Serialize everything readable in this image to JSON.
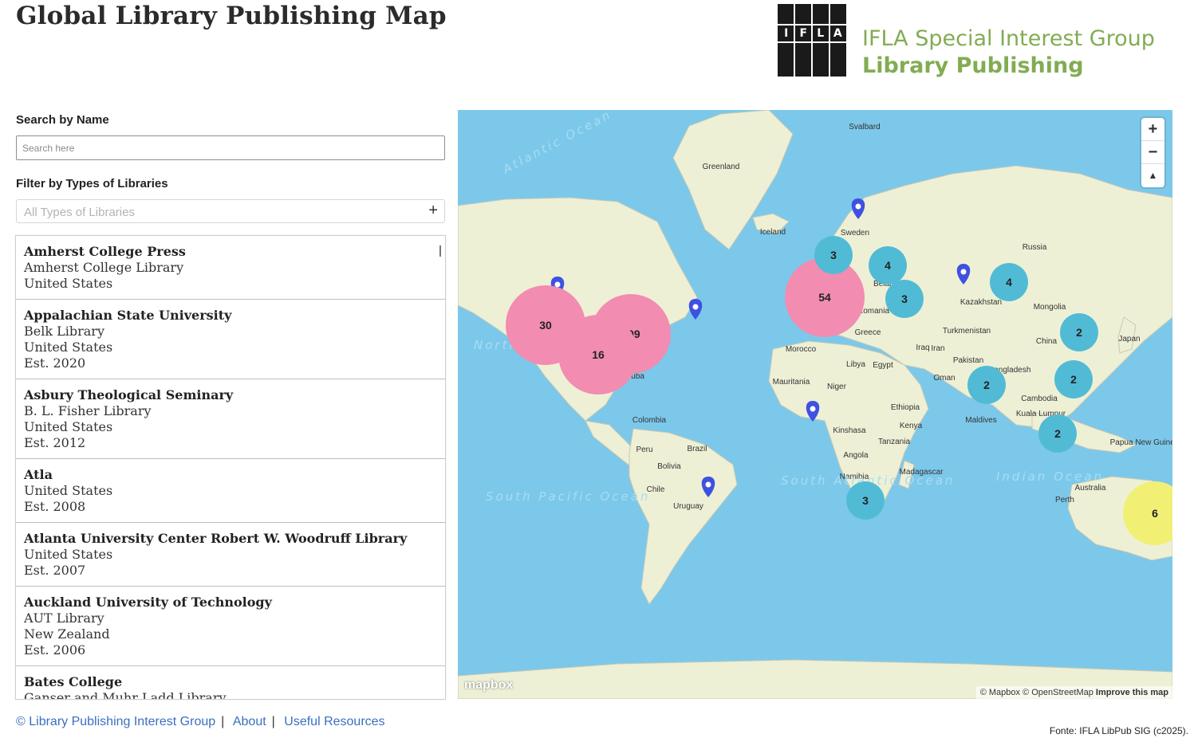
{
  "header": {
    "title": "Global Library Publishing Map",
    "logo_letters": [
      "I",
      "F",
      "L",
      "A"
    ],
    "sig_line1": "IFLA Special Interest Group",
    "sig_line2": "Library Publishing"
  },
  "search": {
    "label": "Search by Name",
    "placeholder": "Search here",
    "value": ""
  },
  "filter": {
    "label": "Filter by Types of Libraries",
    "placeholder": "All Types of Libraries",
    "add_icon": "plus-icon"
  },
  "results": [
    {
      "name": "Amherst College Press",
      "lines": [
        "Amherst College Library",
        "United States"
      ]
    },
    {
      "name": "Appalachian State University",
      "lines": [
        "Belk Library",
        "United States",
        "Est. 2020"
      ]
    },
    {
      "name": "Asbury Theological Seminary",
      "lines": [
        "B. L. Fisher Library",
        "United States",
        "Est. 2012"
      ]
    },
    {
      "name": "Atla",
      "lines": [
        "United States",
        "Est. 2008"
      ]
    },
    {
      "name": "Atlanta University Center Robert W. Woodruff Library",
      "lines": [
        "United States",
        "Est. 2007"
      ]
    },
    {
      "name": "Auckland University of Technology",
      "lines": [
        "AUT Library",
        "New Zealand",
        "Est. 2006"
      ]
    },
    {
      "name": "Bates College",
      "lines": [
        "Ganser and Muhr Ladd Library"
      ]
    }
  ],
  "map": {
    "place_labels": [
      "Svalbard",
      "Greenland",
      "Iceland",
      "Sweden",
      "Russia",
      "Belarus",
      "Romania",
      "Kazakhstan",
      "Mongolia",
      "Turkmenistan",
      "Greece",
      "China",
      "Japan",
      "Morocco",
      "Iraq",
      "Iran",
      "Libya",
      "Egypt",
      "Pakistan",
      "Bangladesh",
      "Mauritania",
      "Niger",
      "Oman",
      "Ethiopia",
      "Maldives",
      "Kuala Lumpur",
      "Cambodia",
      "Kenya",
      "Kinshasa",
      "Tanzania",
      "Papua New Guinea",
      "Angola",
      "Madagascar",
      "Namibia",
      "Australia",
      "Perth",
      "Cuba",
      "Colombia",
      "Peru",
      "Brazil",
      "Bolivia",
      "Chile",
      "Uruguay"
    ],
    "ocean_labels": [
      "Atlantic Ocean",
      "North Pacific Ocean",
      "South Pacific Ocean",
      "South Atlantic Ocean",
      "Indian Ocean"
    ],
    "clusters": [
      30,
      109,
      16,
      54,
      3,
      4,
      3,
      4,
      2,
      2,
      2,
      2,
      3,
      6
    ],
    "zoom_in": "+",
    "zoom_out": "−",
    "compass": "▲",
    "attribution": "© Mapbox © OpenStreetMap",
    "improve_link": "Improve this map",
    "mapbox_logo": "mapbox",
    "colors": {
      "water": "#7cc8ea",
      "land": "#eef0d6",
      "cluster_large": "#f28cb1",
      "cluster_medium": "#f1f075",
      "cluster_small": "#51bbd6",
      "marker": "#3f51e0"
    }
  },
  "footer": {
    "copyright": "© Library Publishing Interest Group",
    "about": "About",
    "resources": "Useful Resources",
    "source": "Fonte: IFLA LibPub SIG (c2025)."
  }
}
